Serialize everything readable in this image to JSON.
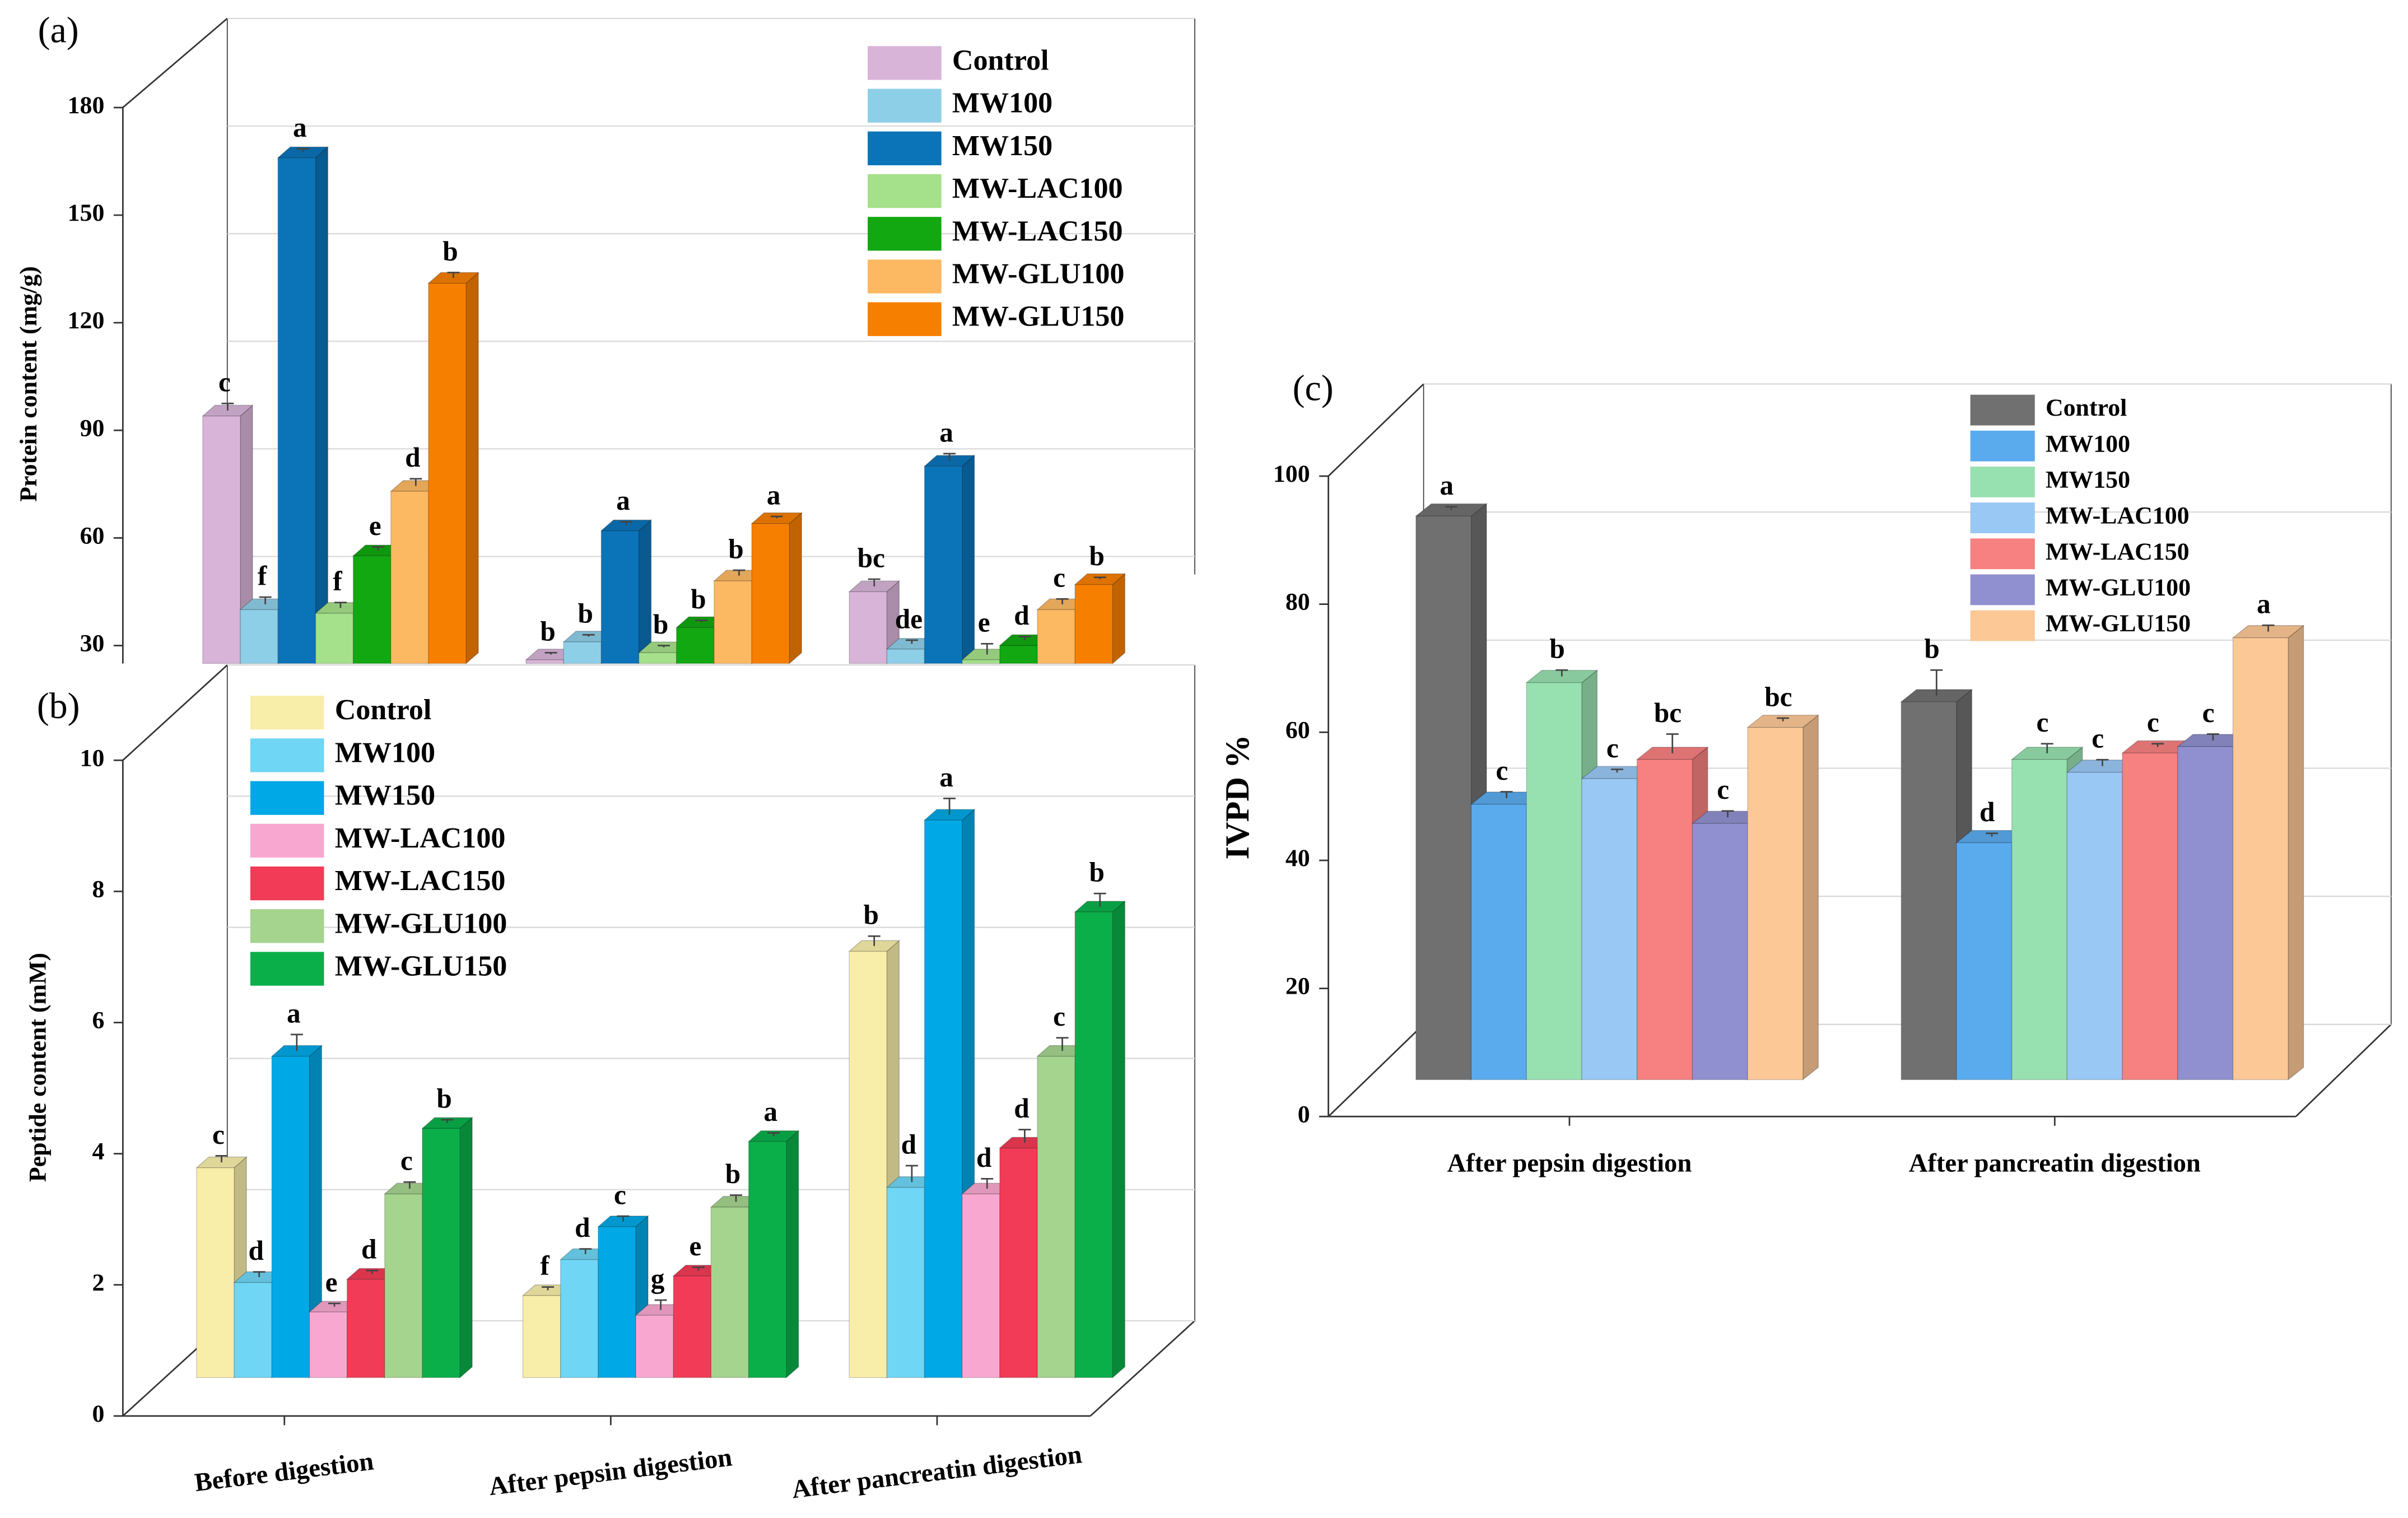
{
  "chart_data": [
    {
      "type": "bar",
      "panel_label": "(a)",
      "ylabel": "Protein content (mg/g)",
      "ylim": [
        25,
        180
      ],
      "yticks": [
        30,
        60,
        90,
        120,
        150,
        180
      ],
      "grid": true,
      "series": [
        {
          "name": "Control",
          "color": "#d8b4d8",
          "values": [
            94,
            26,
            45
          ],
          "errors": [
            2,
            0.5,
            2
          ],
          "letters": [
            "c",
            "b",
            "bc"
          ]
        },
        {
          "name": "MW100",
          "color": "#8ecfe8",
          "values": [
            40,
            31,
            29
          ],
          "errors": [
            2,
            0.5,
            1
          ],
          "letters": [
            "f",
            "b",
            "de"
          ]
        },
        {
          "name": "MW150",
          "color": "#0b74b8",
          "values": [
            166,
            62,
            80
          ],
          "errors": [
            1,
            1,
            2
          ],
          "letters": [
            "a",
            "a",
            "a"
          ]
        },
        {
          "name": "MW-LAC100",
          "color": "#a5e08a",
          "values": [
            39,
            28,
            26
          ],
          "errors": [
            1.5,
            0.5,
            3
          ],
          "letters": [
            "f",
            "b",
            "e"
          ]
        },
        {
          "name": "MW-LAC150",
          "color": "#12a812",
          "values": [
            55,
            35,
            30
          ],
          "errors": [
            1,
            0.5,
            1
          ],
          "letters": [
            "e",
            "b",
            "d"
          ]
        },
        {
          "name": "MW-GLU100",
          "color": "#fdb862",
          "values": [
            73,
            48,
            40
          ],
          "errors": [
            2,
            1.5,
            1.5
          ],
          "letters": [
            "d",
            "b",
            "c"
          ]
        },
        {
          "name": "MW-GLU150",
          "color": "#f77f00",
          "values": [
            131,
            64,
            47
          ],
          "errors": [
            1.5,
            0.5,
            0.5
          ],
          "letters": [
            "b",
            "a",
            "b"
          ]
        }
      ]
    },
    {
      "type": "bar",
      "panel_label": "(b)",
      "ylabel": "Peptide content (mM)",
      "ylim": [
        0,
        10
      ],
      "yticks": [
        0,
        2,
        4,
        6,
        8,
        10
      ],
      "grid": true,
      "categories": [
        "Before digestion",
        "After pepsin digestion",
        "After pancreatin digestion"
      ],
      "series": [
        {
          "name": "Control",
          "color": "#f8eeaa",
          "values": [
            3.2,
            1.25,
            6.5
          ],
          "errors": [
            0.1,
            0.05,
            0.15
          ],
          "letters": [
            "c",
            "f",
            "b"
          ]
        },
        {
          "name": "MW100",
          "color": "#6fd6f5",
          "values": [
            1.45,
            1.8,
            2.9
          ],
          "errors": [
            0.08,
            0.08,
            0.25
          ],
          "letters": [
            "d",
            "d",
            "d"
          ]
        },
        {
          "name": "MW150",
          "color": "#00a8e6",
          "values": [
            4.9,
            2.3,
            8.5
          ],
          "errors": [
            0.25,
            0.08,
            0.25
          ],
          "letters": [
            "a",
            "c",
            "a"
          ]
        },
        {
          "name": "MW-LAC100",
          "color": "#f8a8d0",
          "values": [
            1.0,
            0.95,
            2.8
          ],
          "errors": [
            0.05,
            0.15,
            0.15
          ],
          "letters": [
            "e",
            "g",
            "d"
          ]
        },
        {
          "name": "MW-LAC150",
          "color": "#f23b56",
          "values": [
            1.5,
            1.55,
            3.5
          ],
          "errors": [
            0.05,
            0.05,
            0.2
          ],
          "letters": [
            "d",
            "e",
            "d"
          ]
        },
        {
          "name": "MW-GLU100",
          "color": "#a5d48e",
          "values": [
            2.8,
            2.6,
            4.9
          ],
          "errors": [
            0.1,
            0.1,
            0.2
          ],
          "letters": [
            "c",
            "b",
            "c"
          ]
        },
        {
          "name": "MW-GLU150",
          "color": "#0aaf4a",
          "values": [
            3.8,
            3.6,
            7.1
          ],
          "errors": [
            0.05,
            0.05,
            0.2
          ],
          "letters": [
            "b",
            "a",
            "b"
          ]
        }
      ]
    },
    {
      "type": "bar",
      "panel_label": "(c)",
      "ylabel": "IVPD %",
      "ylim": [
        0,
        100
      ],
      "yticks": [
        0,
        20,
        40,
        60,
        80,
        100
      ],
      "grid": true,
      "categories": [
        "After pepsin digestion",
        "After pancreatin digestion"
      ],
      "series": [
        {
          "name": "Control",
          "color": "#707070",
          "values": [
            88,
            59
          ],
          "errors": [
            0.5,
            4
          ],
          "letters": [
            "a",
            "b"
          ]
        },
        {
          "name": "MW100",
          "color": "#5aabed",
          "values": [
            43,
            37
          ],
          "errors": [
            1,
            0.5
          ],
          "letters": [
            "c",
            "d"
          ]
        },
        {
          "name": "MW150",
          "color": "#97e0b0",
          "values": [
            62,
            50
          ],
          "errors": [
            1,
            1.5
          ],
          "letters": [
            "b",
            "c"
          ]
        },
        {
          "name": "MW-LAC100",
          "color": "#9ac8f5",
          "values": [
            47,
            48
          ],
          "errors": [
            0.5,
            1
          ],
          "letters": [
            "c",
            "c"
          ]
        },
        {
          "name": "MW-LAC150",
          "color": "#f78080",
          "values": [
            50,
            51
          ],
          "errors": [
            3,
            0.5
          ],
          "letters": [
            "bc",
            "c"
          ]
        },
        {
          "name": "MW-GLU100",
          "color": "#9090d0",
          "values": [
            40,
            52
          ],
          "errors": [
            1,
            1
          ],
          "letters": [
            "c",
            "c"
          ]
        },
        {
          "name": "MW-GLU150",
          "color": "#fcc896",
          "values": [
            55,
            69
          ],
          "errors": [
            0.5,
            1
          ],
          "letters": [
            "bc",
            "a"
          ]
        }
      ]
    }
  ]
}
